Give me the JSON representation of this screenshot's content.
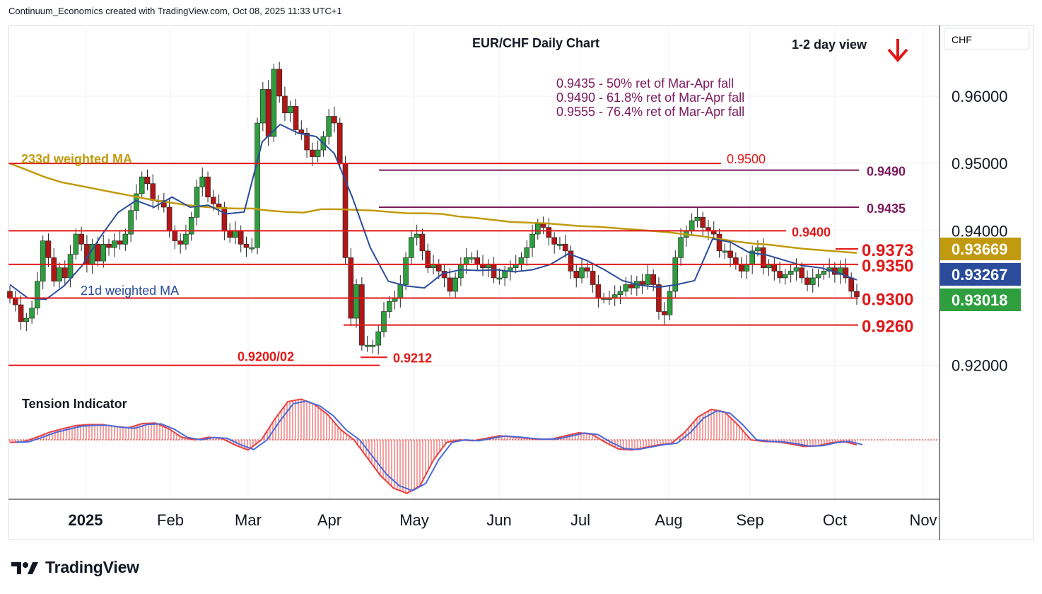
{
  "header": {
    "credit": "Continuum_Economics created with TradingView.com, Oct 08, 2025 11:33 UTC+1"
  },
  "brand": {
    "name": "TradingView",
    "icon": "tradingview-logo-icon"
  },
  "colors": {
    "level_red": "#e01818",
    "fib_purple": "#7b1a5c",
    "ma233": "#c29a0e",
    "ma21": "#2a4c9a",
    "candle_up": "#2e9e3e",
    "candle_down": "#b01616",
    "osc_red": "#e84040",
    "osc_blue": "#4a6ad8"
  },
  "chart_data": {
    "type": "candlestick",
    "title": "EUR/CHF Daily Chart",
    "view": "1-2 day view",
    "view_direction": "down",
    "direction_icon": "down-arrow-icon",
    "currency_label": "CHF",
    "y_ticks": [
      "0.96000",
      "0.95000",
      "0.94000",
      "0.92000"
    ],
    "x_ticks": [
      "2025",
      "Feb",
      "Mar",
      "Apr",
      "May",
      "Jun",
      "Jul",
      "Aug",
      "Sep",
      "Oct",
      "Nov"
    ],
    "ylim": [
      0.9165,
      0.9705
    ],
    "grid": true,
    "fib_notes": [
      "0.9435 - 50% ret of Mar-Apr fall",
      "0.9490 - 61.8% ret of Mar-Apr fall",
      "0.9555 - 76.4% ret of Mar-Apr fall"
    ],
    "ma_labels": {
      "ma233": "233d weighted MA",
      "ma21": "21d weighted MA"
    },
    "levels": [
      {
        "label": "0.9500",
        "value": 0.95,
        "kind": "red"
      },
      {
        "label": "0.9490",
        "value": 0.949,
        "kind": "purple"
      },
      {
        "label": "0.9435",
        "value": 0.9435,
        "kind": "purple"
      },
      {
        "label": "0.9400",
        "value": 0.94,
        "kind": "red"
      },
      {
        "label": "0.9373",
        "value": 0.9373,
        "kind": "red"
      },
      {
        "label": "0.9350",
        "value": 0.935,
        "kind": "red"
      },
      {
        "label": "0.9300",
        "value": 0.93,
        "kind": "red"
      },
      {
        "label": "0.9260",
        "value": 0.926,
        "kind": "red"
      },
      {
        "label": "0.9212",
        "value": 0.9212,
        "kind": "red"
      },
      {
        "label": "0.9200/02",
        "value": 0.92,
        "kind": "red"
      }
    ],
    "price_tags": [
      {
        "series": "233d weighted MA",
        "value": "0.93669",
        "color": "#c29a0e"
      },
      {
        "series": "21d weighted MA",
        "value": "0.93267",
        "color": "#2a4c9a"
      },
      {
        "series": "EUR/CHF",
        "value": "0.93018",
        "color": "#2e9e3e"
      }
    ],
    "closes": [
      0.93,
      0.929,
      0.9265,
      0.927,
      0.9285,
      0.9325,
      0.9385,
      0.936,
      0.9325,
      0.9345,
      0.933,
      0.9365,
      0.9395,
      0.938,
      0.935,
      0.938,
      0.9355,
      0.938,
      0.9375,
      0.9385,
      0.938,
      0.9395,
      0.943,
      0.9455,
      0.948,
      0.947,
      0.9445,
      0.9445,
      0.9435,
      0.94,
      0.9385,
      0.938,
      0.9395,
      0.942,
      0.9465,
      0.948,
      0.945,
      0.944,
      0.9435,
      0.94,
      0.939,
      0.94,
      0.938,
      0.9375,
      0.9375,
      0.956,
      0.961,
      0.954,
      0.964,
      0.96,
      0.9575,
      0.9585,
      0.955,
      0.9545,
      0.952,
      0.951,
      0.952,
      0.954,
      0.957,
      0.956,
      0.95,
      0.936,
      0.927,
      0.932,
      0.923,
      0.923,
      0.923,
      0.925,
      0.928,
      0.9295,
      0.93,
      0.932,
      0.936,
      0.939,
      0.9395,
      0.937,
      0.9345,
      0.935,
      0.934,
      0.933,
      0.931,
      0.933,
      0.935,
      0.936,
      0.936,
      0.935,
      0.9345,
      0.935,
      0.933,
      0.933,
      0.934,
      0.9345,
      0.935,
      0.936,
      0.9375,
      0.9395,
      0.941,
      0.9405,
      0.939,
      0.938,
      0.938,
      0.937,
      0.934,
      0.933,
      0.9345,
      0.934,
      0.932,
      0.93,
      0.93,
      0.93,
      0.9305,
      0.931,
      0.932,
      0.9315,
      0.9325,
      0.932,
      0.9335,
      0.932,
      0.928,
      0.9275,
      0.931,
      0.936,
      0.939,
      0.94,
      0.9415,
      0.942,
      0.9405,
      0.94,
      0.9395,
      0.937,
      0.937,
      0.936,
      0.935,
      0.934,
      0.935,
      0.937,
      0.9375,
      0.9345,
      0.935,
      0.934,
      0.933,
      0.9335,
      0.934,
      0.9345,
      0.933,
      0.932,
      0.933,
      0.9335,
      0.934,
      0.9345,
      0.9335,
      0.9345,
      0.933,
      0.931,
      0.9302
    ],
    "ma233": [
      0.95,
      0.949,
      0.948,
      0.9472,
      0.9467,
      0.9462,
      0.9457,
      0.9452,
      0.9447,
      0.9443,
      0.9439,
      0.9436,
      0.9434,
      0.9433,
      0.9433,
      0.943,
      0.9428,
      0.9427,
      0.9432,
      0.9432,
      0.9431,
      0.943,
      0.9428,
      0.9426,
      0.9426,
      0.9425,
      0.9421,
      0.9419,
      0.9416,
      0.9413,
      0.9412,
      0.9411,
      0.9409,
      0.9407,
      0.9406,
      0.9404,
      0.9402,
      0.94,
      0.9398,
      0.9395,
      0.9392,
      0.9388,
      0.9384,
      0.9381,
      0.9379,
      0.9376,
      0.9373,
      0.9371,
      0.9369,
      0.9367
    ],
    "ma21": [
      0.932,
      0.93,
      0.9298,
      0.9318,
      0.9348,
      0.939,
      0.9427,
      0.9445,
      0.9435,
      0.945,
      0.9435,
      0.9438,
      0.9425,
      0.9428,
      0.9532,
      0.9558,
      0.9545,
      0.954,
      0.9515,
      0.945,
      0.9375,
      0.9325,
      0.9318,
      0.9315,
      0.9336,
      0.9342,
      0.9341,
      0.9342,
      0.9339,
      0.9342,
      0.935,
      0.9366,
      0.9356,
      0.9342,
      0.9326,
      0.9319,
      0.9316,
      0.932,
      0.9326,
      0.9388,
      0.9383,
      0.9368,
      0.9364,
      0.9356,
      0.9348,
      0.9345,
      0.9337,
      0.9327
    ],
    "tension_indicator": {
      "title": "Tension Indicator",
      "values": [
        -0.5,
        -0.4,
        0.5,
        1.5,
        2.2,
        2.8,
        3.0,
        3.0,
        2.6,
        2.4,
        3.2,
        3.3,
        2.2,
        0.5,
        0.0,
        0.5,
        0.3,
        -1.0,
        -2.0,
        0.0,
        4.0,
        7.5,
        8.0,
        7.0,
        5.0,
        2.0,
        0.0,
        -3.5,
        -7.0,
        -9.5,
        -10.5,
        -9.0,
        -4.0,
        -0.5,
        0.0,
        -0.2,
        0.3,
        0.8,
        0.6,
        0.3,
        0.1,
        0.2,
        0.8,
        1.4,
        1.1,
        -0.5,
        -1.8,
        -2.0,
        -1.5,
        -1.0,
        -0.7,
        1.5,
        4.5,
        6.0,
        5.5,
        3.0,
        0.0,
        -0.3,
        -0.4,
        -0.8,
        -1.3,
        -1.2,
        -0.6,
        -0.3,
        -1.0
      ]
    }
  }
}
